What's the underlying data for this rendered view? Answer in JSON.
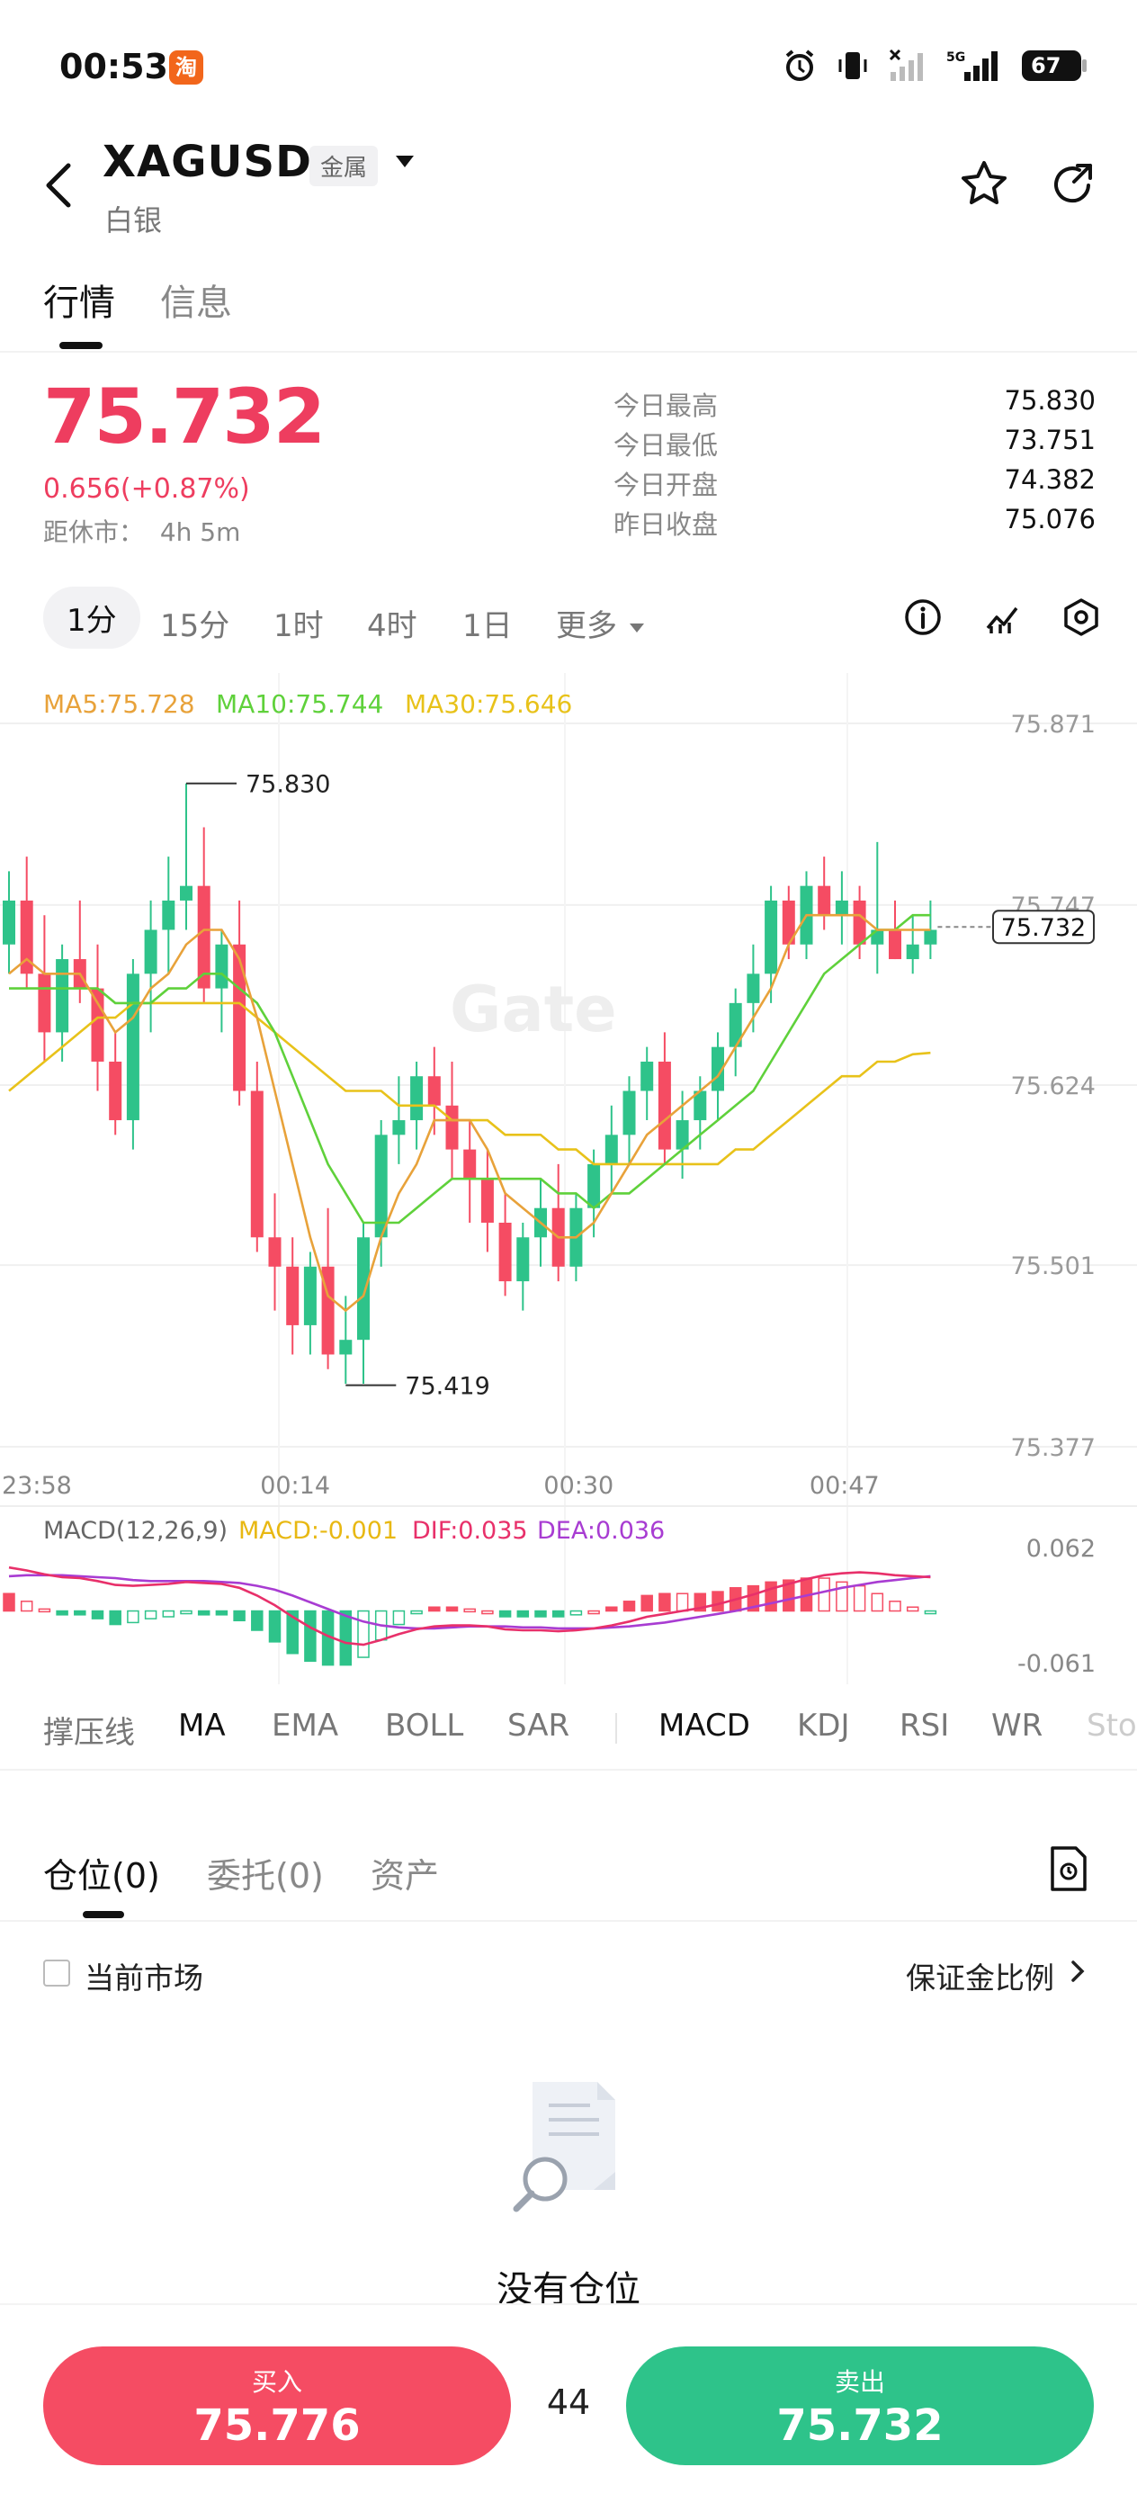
{
  "status_bar": {
    "time": "00:53",
    "app_badge": "淘",
    "battery": "67",
    "network": "5G"
  },
  "header": {
    "symbol": "XAGUSD",
    "category": "金属",
    "name": "白银"
  },
  "main_tabs": [
    {
      "label": "行情"
    },
    {
      "label": "信息"
    }
  ],
  "price": {
    "last": "75.732",
    "change": "0.656(+0.87%)",
    "close_in_label": "距休市：",
    "close_in_value": "4h 5m"
  },
  "stats": [
    {
      "label": "今日最高",
      "value": "75.830"
    },
    {
      "label": "今日最低",
      "value": "73.751"
    },
    {
      "label": "今日开盘",
      "value": "74.382"
    },
    {
      "label": "昨日收盘",
      "value": "75.076"
    }
  ],
  "timeframes": [
    "1分",
    "15分",
    "1时",
    "4时",
    "1日",
    "更多"
  ],
  "chart_data": {
    "type": "candlestick",
    "y_ticks": [
      "75.871",
      "75.747",
      "75.624",
      "75.501",
      "75.377"
    ],
    "x_ticks": [
      "23:58",
      "00:14",
      "00:30",
      "00:47"
    ],
    "ma_labels": [
      {
        "text": "MA5:75.728",
        "color": "#e8a23a"
      },
      {
        "text": "MA10:75.744",
        "color": "#5fd13b"
      },
      {
        "text": "MA30:75.646",
        "color": "#e8c21a"
      }
    ],
    "high_marker": "75.830",
    "low_marker": "75.419",
    "current_price": "75.732",
    "watermark": "Gate",
    "up_color": "#2ec38a",
    "down_color": "#f54c63",
    "ohlc": [
      [
        75.72,
        75.77,
        75.7,
        75.75
      ],
      [
        75.75,
        75.78,
        75.69,
        75.7
      ],
      [
        75.7,
        75.74,
        75.64,
        75.66
      ],
      [
        75.66,
        75.72,
        75.64,
        75.71
      ],
      [
        75.71,
        75.75,
        75.68,
        75.69
      ],
      [
        75.69,
        75.72,
        75.62,
        75.64
      ],
      [
        75.64,
        75.66,
        75.59,
        75.6
      ],
      [
        75.6,
        75.71,
        75.58,
        75.7
      ],
      [
        75.7,
        75.75,
        75.66,
        75.73
      ],
      [
        75.73,
        75.78,
        75.7,
        75.75
      ],
      [
        75.75,
        75.83,
        75.73,
        75.76
      ],
      [
        75.76,
        75.8,
        75.68,
        75.69
      ],
      [
        75.69,
        75.73,
        75.66,
        75.72
      ],
      [
        75.72,
        75.75,
        75.61,
        75.62
      ],
      [
        75.62,
        75.64,
        75.51,
        75.52
      ],
      [
        75.52,
        75.55,
        75.47,
        75.5
      ],
      [
        75.5,
        75.52,
        75.44,
        75.46
      ],
      [
        75.46,
        75.51,
        75.44,
        75.5
      ],
      [
        75.5,
        75.54,
        75.43,
        75.44
      ],
      [
        75.44,
        75.48,
        75.42,
        75.45
      ],
      [
        75.45,
        75.53,
        75.42,
        75.52
      ],
      [
        75.52,
        75.6,
        75.5,
        75.59
      ],
      [
        75.59,
        75.63,
        75.57,
        75.6
      ],
      [
        75.6,
        75.64,
        75.58,
        75.63
      ],
      [
        75.63,
        75.65,
        75.59,
        75.61
      ],
      [
        75.61,
        75.64,
        75.56,
        75.58
      ],
      [
        75.58,
        75.6,
        75.53,
        75.56
      ],
      [
        75.56,
        75.58,
        75.51,
        75.53
      ],
      [
        75.53,
        75.55,
        75.48,
        75.49
      ],
      [
        75.49,
        75.53,
        75.47,
        75.52
      ],
      [
        75.52,
        75.56,
        75.5,
        75.54
      ],
      [
        75.54,
        75.57,
        75.49,
        75.5
      ],
      [
        75.5,
        75.55,
        75.49,
        75.54
      ],
      [
        75.54,
        75.58,
        75.52,
        75.57
      ],
      [
        75.57,
        75.61,
        75.55,
        75.59
      ],
      [
        75.59,
        75.63,
        75.57,
        75.62
      ],
      [
        75.62,
        75.65,
        75.6,
        75.64
      ],
      [
        75.64,
        75.66,
        75.57,
        75.58
      ],
      [
        75.58,
        75.62,
        75.56,
        75.6
      ],
      [
        75.6,
        75.63,
        75.58,
        75.62
      ],
      [
        75.62,
        75.66,
        75.6,
        75.65
      ],
      [
        75.65,
        75.69,
        75.63,
        75.68
      ],
      [
        75.68,
        75.72,
        75.66,
        75.7
      ],
      [
        75.7,
        75.76,
        75.68,
        75.75
      ],
      [
        75.75,
        75.76,
        75.71,
        75.72
      ],
      [
        75.72,
        75.77,
        75.71,
        75.76
      ],
      [
        75.76,
        75.78,
        75.73,
        75.74
      ],
      [
        75.74,
        75.77,
        75.72,
        75.75
      ],
      [
        75.75,
        75.76,
        75.71,
        75.72
      ],
      [
        75.72,
        75.79,
        75.7,
        75.73
      ],
      [
        75.73,
        75.75,
        75.71,
        75.71
      ],
      [
        75.71,
        75.74,
        75.7,
        75.72
      ],
      [
        75.72,
        75.75,
        75.71,
        75.73
      ]
    ],
    "ma5": [
      75.7,
      75.71,
      75.7,
      75.7,
      75.7,
      75.68,
      75.66,
      75.67,
      75.69,
      75.7,
      75.72,
      75.73,
      75.73,
      75.71,
      75.67,
      75.62,
      75.57,
      75.52,
      75.48,
      75.47,
      75.48,
      75.52,
      75.55,
      75.57,
      75.6,
      75.6,
      75.6,
      75.58,
      75.55,
      75.54,
      75.53,
      75.52,
      75.52,
      75.53,
      75.55,
      75.57,
      75.59,
      75.6,
      75.61,
      75.62,
      75.63,
      75.65,
      75.67,
      75.69,
      75.72,
      75.74,
      75.74,
      75.74,
      75.74,
      75.73,
      75.73,
      75.73,
      75.73
    ],
    "ma10": [
      75.69,
      75.69,
      75.69,
      75.69,
      75.69,
      75.69,
      75.68,
      75.68,
      75.68,
      75.69,
      75.69,
      75.7,
      75.7,
      75.69,
      75.68,
      75.66,
      75.63,
      75.6,
      75.57,
      75.55,
      75.53,
      75.53,
      75.53,
      75.54,
      75.55,
      75.56,
      75.56,
      75.56,
      75.56,
      75.56,
      75.56,
      75.55,
      75.55,
      75.54,
      75.55,
      75.55,
      75.56,
      75.57,
      75.58,
      75.59,
      75.6,
      75.61,
      75.62,
      75.64,
      75.66,
      75.68,
      75.7,
      75.71,
      75.72,
      75.73,
      75.73,
      75.74,
      75.74
    ],
    "ma30": [
      75.62,
      75.63,
      75.64,
      75.65,
      75.66,
      75.67,
      75.67,
      75.68,
      75.68,
      75.68,
      75.68,
      75.68,
      75.68,
      75.68,
      75.67,
      75.66,
      75.65,
      75.64,
      75.63,
      75.62,
      75.62,
      75.62,
      75.61,
      75.61,
      75.61,
      75.6,
      75.6,
      75.6,
      75.59,
      75.59,
      75.59,
      75.58,
      75.58,
      75.57,
      75.57,
      75.57,
      75.57,
      75.57,
      75.57,
      75.57,
      75.57,
      75.58,
      75.58,
      75.59,
      75.6,
      75.61,
      75.62,
      75.63,
      75.63,
      75.64,
      75.64,
      75.645,
      75.646
    ]
  },
  "macd": {
    "title": "MACD(12,26,9)",
    "macd": "MACD:-0.001",
    "dif": "DIF:0.035",
    "dea": "DEA:0.036",
    "ticks": [
      "0.062",
      "-0.061"
    ],
    "dif_values": [
      0.045,
      0.042,
      0.038,
      0.035,
      0.034,
      0.031,
      0.027,
      0.026,
      0.027,
      0.028,
      0.03,
      0.029,
      0.028,
      0.024,
      0.016,
      0.006,
      -0.006,
      -0.017,
      -0.026,
      -0.033,
      -0.035,
      -0.03,
      -0.024,
      -0.019,
      -0.016,
      -0.015,
      -0.015,
      -0.016,
      -0.019,
      -0.02,
      -0.02,
      -0.021,
      -0.02,
      -0.018,
      -0.015,
      -0.011,
      -0.006,
      -0.003,
      0.0,
      0.003,
      0.007,
      0.012,
      0.017,
      0.023,
      0.028,
      0.033,
      0.037,
      0.039,
      0.04,
      0.039,
      0.037,
      0.036,
      0.035
    ],
    "dea_values": [
      0.036,
      0.037,
      0.037,
      0.037,
      0.036,
      0.035,
      0.034,
      0.032,
      0.031,
      0.031,
      0.031,
      0.031,
      0.03,
      0.029,
      0.026,
      0.022,
      0.016,
      0.009,
      0.002,
      -0.005,
      -0.011,
      -0.015,
      -0.017,
      -0.018,
      -0.018,
      -0.017,
      -0.016,
      -0.016,
      -0.016,
      -0.017,
      -0.017,
      -0.018,
      -0.018,
      -0.018,
      -0.017,
      -0.016,
      -0.014,
      -0.012,
      -0.009,
      -0.006,
      -0.003,
      0.0,
      0.004,
      0.008,
      0.012,
      0.016,
      0.02,
      0.024,
      0.027,
      0.03,
      0.032,
      0.034,
      0.036
    ]
  },
  "indicators": [
    "撑压线",
    "MA",
    "EMA",
    "BOLL",
    "SAR",
    "MACD",
    "KDJ",
    "RSI",
    "WR",
    "StochRSI"
  ],
  "positions": {
    "tabs": [
      "仓位(0)",
      "委托(0)",
      "资产"
    ],
    "current_market": "当前市场",
    "margin_ratio": "保证金比例",
    "empty_text": "没有仓位"
  },
  "trade": {
    "buy_label": "买入",
    "buy_price": "75.776",
    "spread": "44",
    "sell_label": "卖出",
    "sell_price": "75.732"
  }
}
